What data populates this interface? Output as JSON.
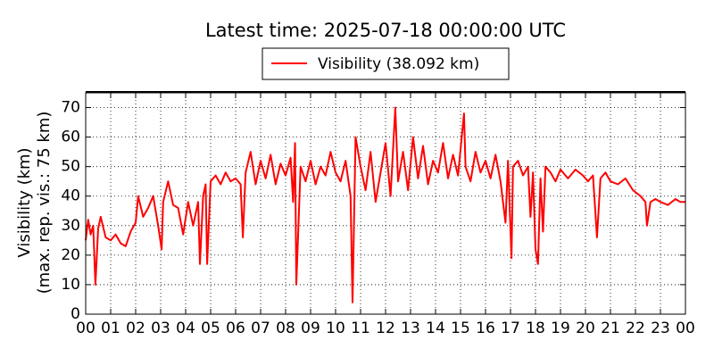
{
  "chart_data": {
    "type": "line",
    "title": "Latest time: 2025-07-18 00:00:00 UTC",
    "ylabel": [
      "Visibility (km)",
      "(max. rep. vis.: 75 km)"
    ],
    "x": [
      0.0,
      0.1,
      0.2,
      0.3,
      0.39,
      0.5,
      0.6,
      0.8,
      1.0,
      1.2,
      1.4,
      1.6,
      1.8,
      2.0,
      2.1,
      2.3,
      2.5,
      2.7,
      2.9,
      3.04,
      3.1,
      3.3,
      3.5,
      3.7,
      3.9,
      4.1,
      4.3,
      4.5,
      4.57,
      4.7,
      4.8,
      4.86,
      5.0,
      5.2,
      5.4,
      5.6,
      5.8,
      6.0,
      6.2,
      6.29,
      6.4,
      6.6,
      6.8,
      7.0,
      7.2,
      7.4,
      7.6,
      7.8,
      8.0,
      8.2,
      8.3,
      8.38,
      8.43,
      8.6,
      8.8,
      9.0,
      9.2,
      9.4,
      9.6,
      9.8,
      10.0,
      10.2,
      10.4,
      10.6,
      10.68,
      10.8,
      11.0,
      11.2,
      11.4,
      11.6,
      11.8,
      12.0,
      12.2,
      12.39,
      12.5,
      12.7,
      12.9,
      13.1,
      13.3,
      13.5,
      13.7,
      13.9,
      14.1,
      14.3,
      14.5,
      14.7,
      14.9,
      15.14,
      15.2,
      15.4,
      15.6,
      15.8,
      16.0,
      16.2,
      16.4,
      16.6,
      16.8,
      16.9,
      17.04,
      17.1,
      17.3,
      17.5,
      17.7,
      17.8,
      17.9,
      18.0,
      18.1,
      18.2,
      18.3,
      18.4,
      18.6,
      18.8,
      19.0,
      19.3,
      19.6,
      19.9,
      20.1,
      20.3,
      20.46,
      20.6,
      20.8,
      21.0,
      21.3,
      21.6,
      21.9,
      22.2,
      22.4,
      22.46,
      22.6,
      22.8,
      23.0,
      23.3,
      23.6,
      23.8,
      24.0
    ],
    "series": [
      {
        "name": "Visibility (38.092 km)",
        "color": "#ff0000",
        "values": [
          25,
          32,
          27,
          30,
          10,
          29,
          33,
          26,
          25,
          27,
          24,
          23,
          28,
          31,
          40,
          33,
          36,
          40,
          30,
          22,
          38,
          45,
          37,
          36,
          27,
          38,
          30,
          38,
          17,
          40,
          44,
          17,
          45,
          47,
          44,
          48,
          45,
          46,
          44,
          26,
          48,
          55,
          44,
          52,
          46,
          54,
          44,
          51,
          47,
          53,
          38,
          58,
          10,
          50,
          45,
          52,
          44,
          50,
          47,
          55,
          48,
          45,
          52,
          40,
          4,
          60,
          50,
          42,
          55,
          38,
          48,
          58,
          40,
          70,
          45,
          55,
          42,
          60,
          46,
          57,
          44,
          52,
          48,
          58,
          46,
          54,
          47,
          68,
          50,
          45,
          55,
          48,
          52,
          46,
          54,
          45,
          31,
          52,
          19,
          50,
          52,
          47,
          50,
          33,
          48,
          22,
          17,
          46,
          28,
          50,
          48,
          45,
          49,
          46,
          49,
          47,
          45,
          47,
          26,
          46,
          48,
          45,
          44,
          46,
          42,
          40,
          38,
          30,
          38,
          39,
          38,
          37,
          39,
          38,
          38
        ]
      }
    ],
    "xlim": [
      0,
      24
    ],
    "xticks": [
      {
        "value": 0,
        "label": "00"
      },
      {
        "value": 1,
        "label": "01"
      },
      {
        "value": 2,
        "label": "02"
      },
      {
        "value": 3,
        "label": "03"
      },
      {
        "value": 4,
        "label": "04"
      },
      {
        "value": 5,
        "label": "05"
      },
      {
        "value": 6,
        "label": "06"
      },
      {
        "value": 7,
        "label": "07"
      },
      {
        "value": 8,
        "label": "08"
      },
      {
        "value": 9,
        "label": "09"
      },
      10,
      11,
      12,
      13,
      14,
      15,
      16,
      17,
      18,
      19,
      20,
      21,
      22,
      23,
      {
        "value": 24,
        "label": "00"
      }
    ],
    "ylim": [
      0,
      75
    ],
    "yticks": [
      0,
      10,
      20,
      30,
      40,
      50,
      60,
      70
    ],
    "grid": true
  }
}
